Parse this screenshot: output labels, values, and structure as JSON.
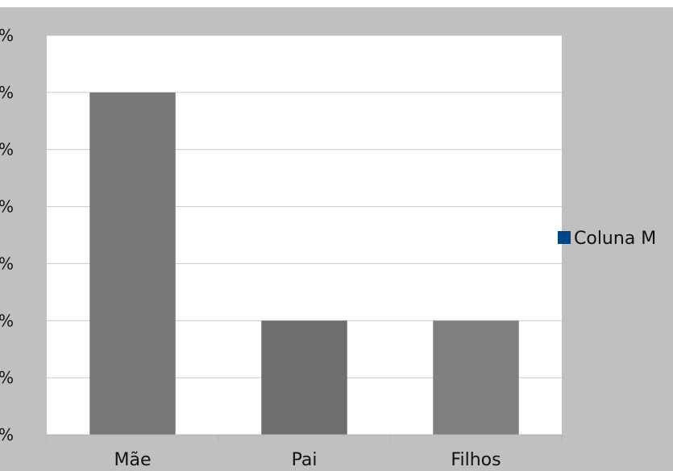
{
  "header": {
    "caption": ""
  },
  "colors": {
    "chart_background": "#c0c0c0",
    "plot_background": "#ffffff",
    "grid": "#c8c8c8",
    "axis": "#b4b4b4",
    "legend_marker": "#004586",
    "bar_colors": [
      "#777777",
      "#6e6e6f",
      "#808080"
    ]
  },
  "chart_data": {
    "type": "bar",
    "categories": [
      "Mãe",
      "Pai",
      "Filhos"
    ],
    "series": [
      {
        "name": "Coluna M",
        "values": [
          60,
          20,
          20
        ]
      }
    ],
    "ylim": [
      0,
      70
    ],
    "y_ticks": [
      0,
      10,
      20,
      30,
      40,
      50,
      60,
      70
    ],
    "y_tick_labels": [
      "%",
      "%",
      "%",
      "%",
      "%",
      "%",
      "%",
      "%"
    ],
    "title": "",
    "xlabel": "",
    "ylabel": "",
    "grid": true,
    "legend_position": "right"
  }
}
